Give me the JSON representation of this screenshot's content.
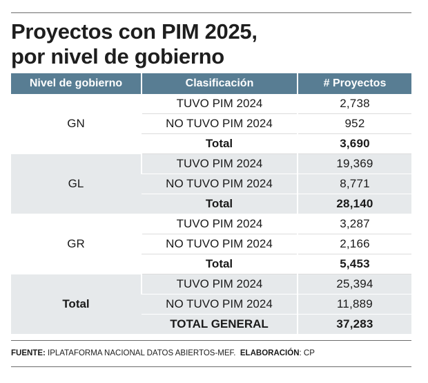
{
  "title": {
    "line1": "Proyectos con PIM 2025,",
    "line2": "por nivel de gobierno"
  },
  "chart_data": {
    "type": "table",
    "title": "Proyectos con PIM 2025, por nivel de gobierno",
    "columns": [
      "Nivel de gobierno",
      "Clasificación",
      "# Proyectos"
    ],
    "groups": [
      {
        "level": "GN",
        "rows": [
          {
            "clasificacion": "TUVO PIM 2024",
            "proyectos": "2,738"
          },
          {
            "clasificacion": "NO TUVO PIM 2024",
            "proyectos": "952"
          },
          {
            "clasificacion": "Total",
            "proyectos": "3,690"
          }
        ]
      },
      {
        "level": "GL",
        "rows": [
          {
            "clasificacion": "TUVO PIM 2024",
            "proyectos": "19,369"
          },
          {
            "clasificacion": "NO TUVO PIM 2024",
            "proyectos": "8,771"
          },
          {
            "clasificacion": "Total",
            "proyectos": "28,140"
          }
        ]
      },
      {
        "level": "GR",
        "rows": [
          {
            "clasificacion": "TUVO PIM 2024",
            "proyectos": "3,287"
          },
          {
            "clasificacion": "NO TUVO PIM 2024",
            "proyectos": "2,166"
          },
          {
            "clasificacion": "Total",
            "proyectos": "5,453"
          }
        ]
      },
      {
        "level": "Total",
        "rows": [
          {
            "clasificacion": "TUVO PIM 2024",
            "proyectos": "25,394"
          },
          {
            "clasificacion": "NO TUVO PIM 2024",
            "proyectos": "11,889"
          },
          {
            "clasificacion": "TOTAL GENERAL",
            "proyectos": "37,283"
          }
        ]
      }
    ]
  },
  "footer": {
    "source_label": "FUENTE:",
    "source_text": "IPLATAFORMA NACIONAL DATOS ABIERTOS-MEF.",
    "credit_label": "ELABORACIÓN",
    "credit_text": ": CP"
  },
  "colors": {
    "header_bg": "#587d93",
    "shaded_bg": "#e6e9eb",
    "text": "#1a1a1a"
  }
}
